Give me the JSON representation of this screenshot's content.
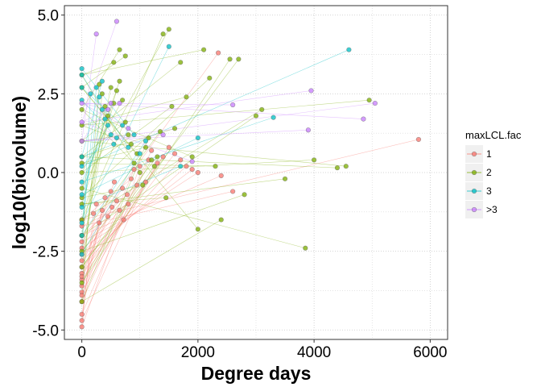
{
  "chart_data": {
    "type": "scatter",
    "xlabel": "Degree days",
    "ylabel": "log10(biovolume)",
    "xlim": [
      -300,
      6300
    ],
    "ylim": [
      -5.3,
      5.3
    ],
    "x_ticks": [
      0,
      2000,
      4000,
      6000
    ],
    "x_tick_labels": [
      "0",
      "2000",
      "4000",
      "6000"
    ],
    "y_ticks": [
      -5.0,
      -2.5,
      0.0,
      2.5,
      5.0
    ],
    "y_tick_labels": [
      "-5.0",
      "-2.5",
      "0.0",
      "2.5",
      "5.0"
    ],
    "grid": true,
    "grid_style": "dotted",
    "legend": {
      "title": "maxLCL.fac",
      "placement": "right",
      "entries": [
        "1",
        "2",
        "3",
        ">3"
      ]
    },
    "colors": {
      "1": "#F8766D",
      "2": "#7CAE00",
      "3": "#00BFC4",
      ">3": "#C77CFF"
    },
    "series": [
      {
        "name": "1",
        "points": [
          [
            0,
            -4.9
          ],
          [
            0,
            -4.7
          ],
          [
            0,
            -4.5
          ],
          [
            0,
            -4.1
          ],
          [
            0,
            -3.8
          ],
          [
            0,
            -3.6
          ],
          [
            0,
            -3.4
          ],
          [
            0,
            -3.2
          ],
          [
            0,
            -3.0
          ],
          [
            0,
            -2.8
          ],
          [
            0,
            -2.6
          ],
          [
            0,
            -2.4
          ],
          [
            0,
            -2.2
          ],
          [
            0,
            -2.0
          ],
          [
            0,
            -1.7
          ],
          [
            0,
            -1.5
          ],
          [
            0,
            -3.9
          ],
          [
            0,
            -3.3
          ],
          [
            200,
            -1.3
          ],
          [
            250,
            -1.0
          ],
          [
            300,
            -1.6
          ],
          [
            350,
            -1.2
          ],
          [
            400,
            -0.8
          ],
          [
            450,
            -1.4
          ],
          [
            500,
            -0.6
          ],
          [
            520,
            -1.1
          ],
          [
            560,
            -0.3
          ],
          [
            600,
            -0.9
          ],
          [
            650,
            -1.2
          ],
          [
            700,
            -0.5
          ],
          [
            720,
            -1.5
          ],
          [
            780,
            -0.7
          ],
          [
            800,
            -1.0
          ],
          [
            850,
            -0.2
          ],
          [
            900,
            0.1
          ],
          [
            950,
            -0.4
          ],
          [
            1000,
            0.2
          ],
          [
            1100,
            -0.3
          ],
          [
            1150,
            0.4
          ],
          [
            1200,
            0.7
          ],
          [
            1300,
            0.3
          ],
          [
            1400,
            0.5
          ],
          [
            1500,
            0.8
          ],
          [
            1600,
            0.6
          ],
          [
            1700,
            0.4
          ],
          [
            1800,
            0.2
          ],
          [
            1900,
            0.1
          ],
          [
            2000,
            0.0
          ],
          [
            2350,
            3.8
          ],
          [
            2400,
            -0.1
          ],
          [
            2600,
            -0.6
          ],
          [
            5800,
            1.05
          ]
        ]
      },
      {
        "name": "2",
        "points": [
          [
            0,
            -4.1
          ],
          [
            0,
            -3.5
          ],
          [
            0,
            -3.0
          ],
          [
            0,
            -2.5
          ],
          [
            0,
            -2.0
          ],
          [
            0,
            -1.5
          ],
          [
            0,
            -1.0
          ],
          [
            0,
            -0.5
          ],
          [
            0,
            0.0
          ],
          [
            0,
            0.5
          ],
          [
            0,
            1.0
          ],
          [
            0,
            1.5
          ],
          [
            0,
            2.0
          ],
          [
            0,
            2.7
          ],
          [
            0,
            3.1
          ],
          [
            0,
            -0.8
          ],
          [
            0,
            0.3
          ],
          [
            300,
            2.8
          ],
          [
            350,
            2.5
          ],
          [
            400,
            2.1
          ],
          [
            450,
            1.8
          ],
          [
            500,
            2.7
          ],
          [
            550,
            2.2
          ],
          [
            600,
            2.6
          ],
          [
            650,
            2.9
          ],
          [
            700,
            2.3
          ],
          [
            750,
            1.6
          ],
          [
            800,
            1.2
          ],
          [
            850,
            0.9
          ],
          [
            900,
            0.3
          ],
          [
            950,
            0.6
          ],
          [
            1000,
            0.0
          ],
          [
            1050,
            -0.4
          ],
          [
            1100,
            0.8
          ],
          [
            1150,
            1.1
          ],
          [
            1200,
            0.4
          ],
          [
            1250,
            0.2
          ],
          [
            1300,
            0.5
          ],
          [
            1350,
            1.3
          ],
          [
            1400,
            4.4
          ],
          [
            1450,
            -0.8
          ],
          [
            1500,
            4.55
          ],
          [
            1550,
            2.1
          ],
          [
            1600,
            1.4
          ],
          [
            1700,
            3.5
          ],
          [
            1800,
            2.4
          ],
          [
            1900,
            0.5
          ],
          [
            2000,
            -1.8
          ],
          [
            2100,
            3.9
          ],
          [
            2200,
            3.0
          ],
          [
            2300,
            0.2
          ],
          [
            2400,
            -1.5
          ],
          [
            2550,
            3.6
          ],
          [
            2700,
            3.6
          ],
          [
            2800,
            -0.7
          ],
          [
            3000,
            1.8
          ],
          [
            3100,
            2.0
          ],
          [
            3500,
            -0.2
          ],
          [
            3850,
            -2.4
          ],
          [
            4000,
            0.4
          ],
          [
            4400,
            0.15
          ],
          [
            4550,
            0.2
          ],
          [
            4950,
            2.3
          ],
          [
            650,
            3.9
          ],
          [
            750,
            3.7
          ],
          [
            550,
            3.5
          ]
        ]
      },
      {
        "name": "3",
        "points": [
          [
            0,
            -2.6
          ],
          [
            0,
            -2.0
          ],
          [
            0,
            -1.6
          ],
          [
            0,
            -1.1
          ],
          [
            0,
            -0.7
          ],
          [
            0,
            -0.3
          ],
          [
            0,
            0.2
          ],
          [
            0,
            0.5
          ],
          [
            0,
            2.3
          ],
          [
            0,
            2.7
          ],
          [
            0,
            3.1
          ],
          [
            0,
            3.3
          ],
          [
            150,
            2.5
          ],
          [
            250,
            2.7
          ],
          [
            300,
            2.4
          ],
          [
            350,
            2.0
          ],
          [
            400,
            1.7
          ],
          [
            450,
            1.5
          ],
          [
            500,
            1.2
          ],
          [
            550,
            0.9
          ],
          [
            600,
            1.1
          ],
          [
            700,
            1.5
          ],
          [
            800,
            0.8
          ],
          [
            900,
            1.2
          ],
          [
            1000,
            0.6
          ],
          [
            1100,
            1.0
          ],
          [
            1500,
            4.0
          ],
          [
            1700,
            0.2
          ],
          [
            2000,
            1.1
          ],
          [
            3300,
            1.75
          ],
          [
            4600,
            3.9
          ],
          [
            350,
            2.9
          ]
        ]
      },
      {
        "name": ">3",
        "points": [
          [
            0,
            1.0
          ],
          [
            0,
            1.6
          ],
          [
            0,
            2.2
          ],
          [
            250,
            4.4
          ],
          [
            600,
            4.8
          ],
          [
            450,
            2.0
          ],
          [
            500,
            2.2
          ],
          [
            650,
            2.2
          ],
          [
            800,
            1.4
          ],
          [
            1400,
            1.2
          ],
          [
            1900,
            0.35
          ],
          [
            2600,
            2.15
          ],
          [
            3900,
            1.35
          ],
          [
            3950,
            2.6
          ],
          [
            4850,
            1.7
          ],
          [
            5050,
            2.2
          ]
        ]
      }
    ]
  }
}
